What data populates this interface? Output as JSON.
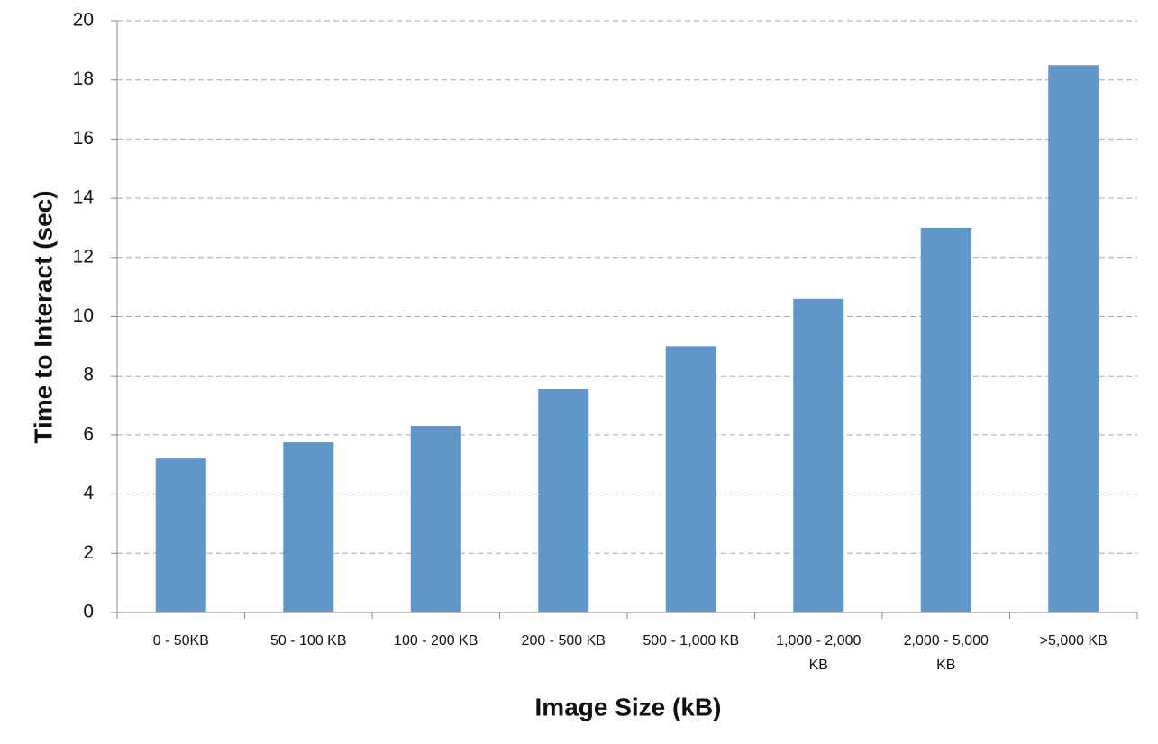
{
  "chart_data": {
    "type": "bar",
    "x_label": "Image Size (kB)",
    "y_label": "Time to Interact (sec)",
    "categories": [
      "0 - 50KB",
      "50 - 100 KB",
      "100 - 200 KB",
      "200 - 500 KB",
      "500 - 1,000 KB",
      "1,000 - 2,000 KB",
      "2,000 - 5,000 KB",
      ">5,000 KB"
    ],
    "values": [
      5.2,
      5.75,
      6.3,
      7.55,
      9.0,
      10.6,
      13.0,
      18.5
    ],
    "color": "#6096c9",
    "ylim": [
      0,
      20
    ],
    "yticks": [
      0,
      2,
      4,
      6,
      8,
      10,
      12,
      14,
      16,
      18,
      20
    ],
    "grid": true
  }
}
